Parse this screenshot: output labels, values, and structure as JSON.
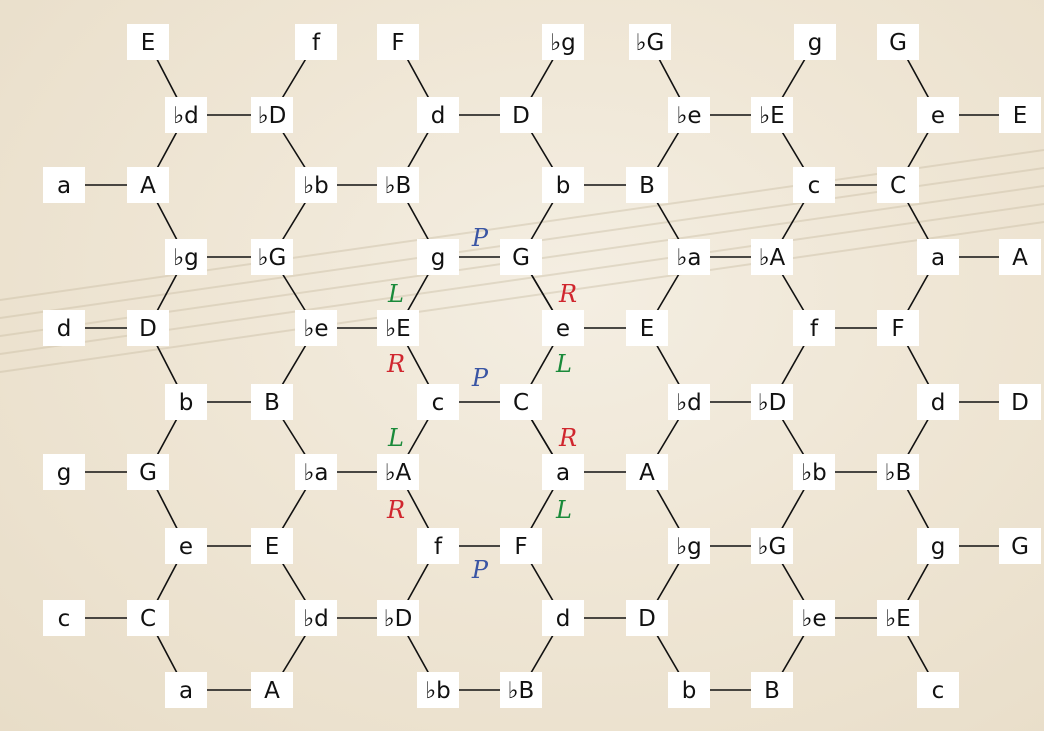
{
  "title": "Neo-Riemannian Tonnetz (chicken-wire hexagon lattice)",
  "colors": {
    "P": "#3a55a4",
    "L": "#1a8a3a",
    "R": "#d0262e",
    "edge": "#111111"
  },
  "nodes": {
    "E_0": "E",
    "f_0": "f",
    "F_0": "F",
    "bg_0": "♭g",
    "bG_0": "♭G",
    "g_0": "g",
    "G_0": "G",
    "bd_1": "♭d",
    "bD_1": "♭D",
    "d_1": "d",
    "D_1": "D",
    "be_1": "♭e",
    "bE_1": "♭E",
    "e_1": "e",
    "E_1": "E",
    "a_2": "a",
    "A_2": "A",
    "bb_2": "♭b",
    "bB_2": "♭B",
    "b_2": "b",
    "B_2": "B",
    "c_2": "c",
    "C_2": "C",
    "bg_3": "♭g",
    "bG_3": "♭G",
    "g_3": "g",
    "G_3": "G",
    "ba_3": "♭a",
    "bA_3": "♭A",
    "a_3": "a",
    "A_3": "A",
    "d_4": "d",
    "D_4": "D",
    "be_4": "♭e",
    "bE_4": "♭E",
    "e_4": "e",
    "E_4": "E",
    "f_4": "f",
    "F_4": "F",
    "b_5": "b",
    "B_5": "B",
    "c_5": "c",
    "C_5": "C",
    "bd_5": "♭d",
    "bD_5": "♭D",
    "d_5": "d",
    "D_5": "D",
    "g_6": "g",
    "G_6": "G",
    "ba_6": "♭a",
    "bA_6": "♭A",
    "a_6": "a",
    "A_6": "A",
    "bb_6": "♭b",
    "bB_6": "♭B",
    "e_7": "e",
    "E_7": "E",
    "f_7": "f",
    "F_7": "F",
    "bg_7": "♭g",
    "bG_7": "♭G",
    "g_7": "g",
    "G_7": "G",
    "c_8": "c",
    "C_8": "C",
    "bd_8": "♭d",
    "bD_8": "♭D",
    "d_8": "d",
    "D_8": "D",
    "be_8": "♭e",
    "bE_8": "♭E",
    "a_9": "a",
    "A_9": "A",
    "bb_9": "♭b",
    "bB_9": "♭B",
    "b_9": "b",
    "B_9": "B",
    "c_9": "c"
  },
  "operations": [
    {
      "id": "P1",
      "label": "P"
    },
    {
      "id": "L1",
      "label": "L"
    },
    {
      "id": "R1",
      "label": "R"
    },
    {
      "id": "R2",
      "label": "R"
    },
    {
      "id": "P2",
      "label": "P"
    },
    {
      "id": "L2",
      "label": "L"
    },
    {
      "id": "L3",
      "label": "L"
    },
    {
      "id": "R3",
      "label": "R"
    },
    {
      "id": "R4",
      "label": "R"
    },
    {
      "id": "L4",
      "label": "L"
    },
    {
      "id": "P3",
      "label": "P"
    }
  ]
}
